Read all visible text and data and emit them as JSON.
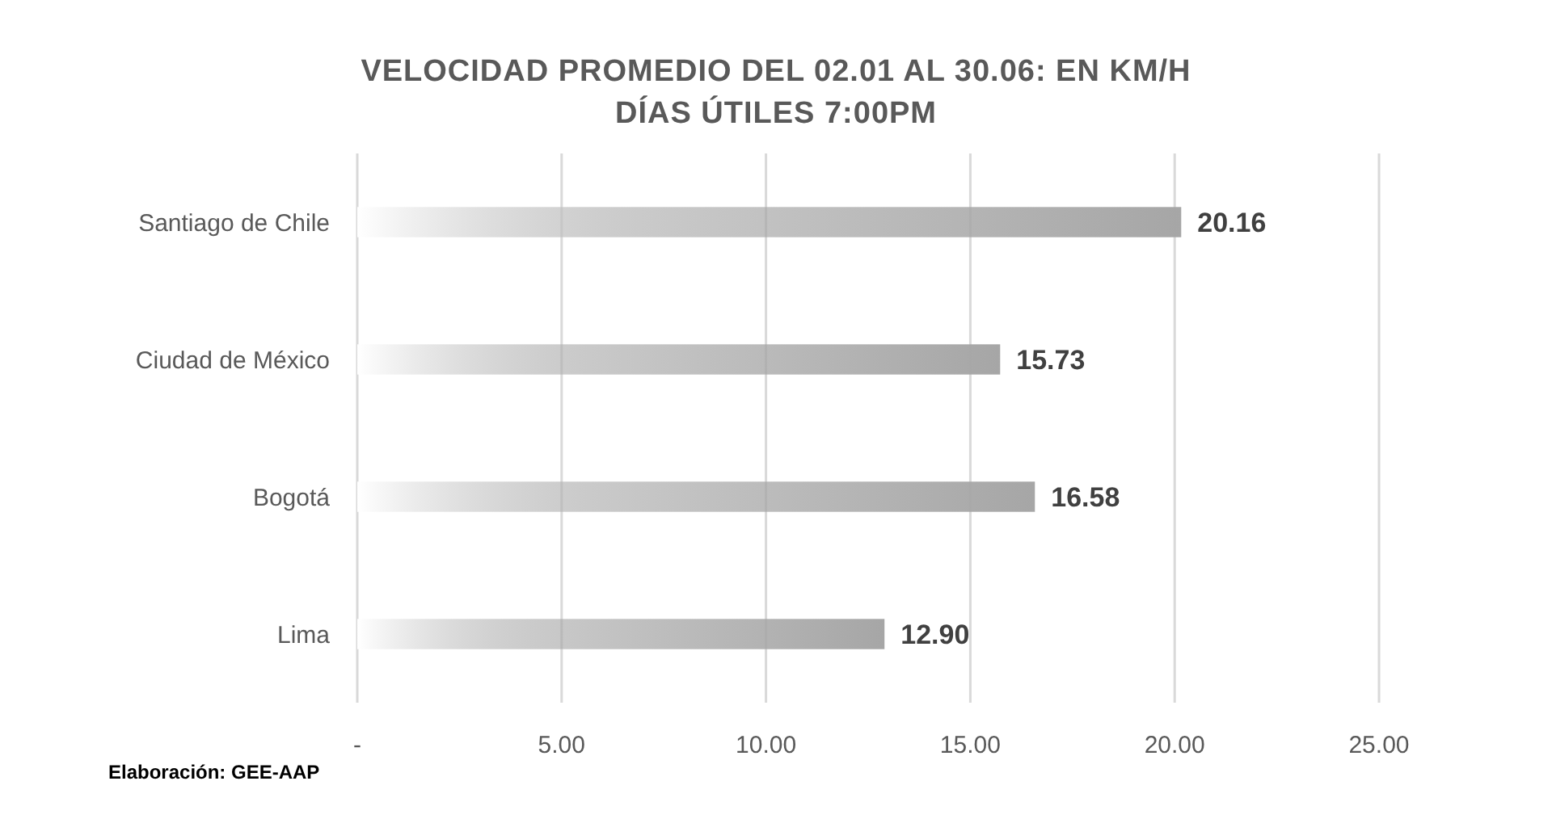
{
  "chart_data": {
    "type": "bar",
    "orientation": "horizontal",
    "title": "VELOCIDAD PROMEDIO DEL 02.01 AL 30.06: EN KM/H",
    "subtitle": "DÍAS ÚTILES 7:00PM",
    "categories": [
      "Santiago de Chile",
      "Ciudad de México",
      "Bogotá",
      "Lima"
    ],
    "values": [
      20.16,
      15.73,
      16.58,
      12.9
    ],
    "value_labels": [
      "20.16",
      "15.73",
      "16.58",
      "12.90"
    ],
    "color": "#a6a6a6",
    "xlim": [
      0,
      25
    ],
    "xticks": [
      {
        "value": 0,
        "label": "-"
      },
      {
        "value": 5,
        "label": "5.00"
      },
      {
        "value": 10,
        "label": "10.00"
      },
      {
        "value": 15,
        "label": "15.00"
      },
      {
        "value": 20,
        "label": "20.00"
      },
      {
        "value": 25,
        "label": "25.00"
      }
    ],
    "grid": "x",
    "annotations": [
      "Elaboración: GEE-AAP"
    ]
  }
}
